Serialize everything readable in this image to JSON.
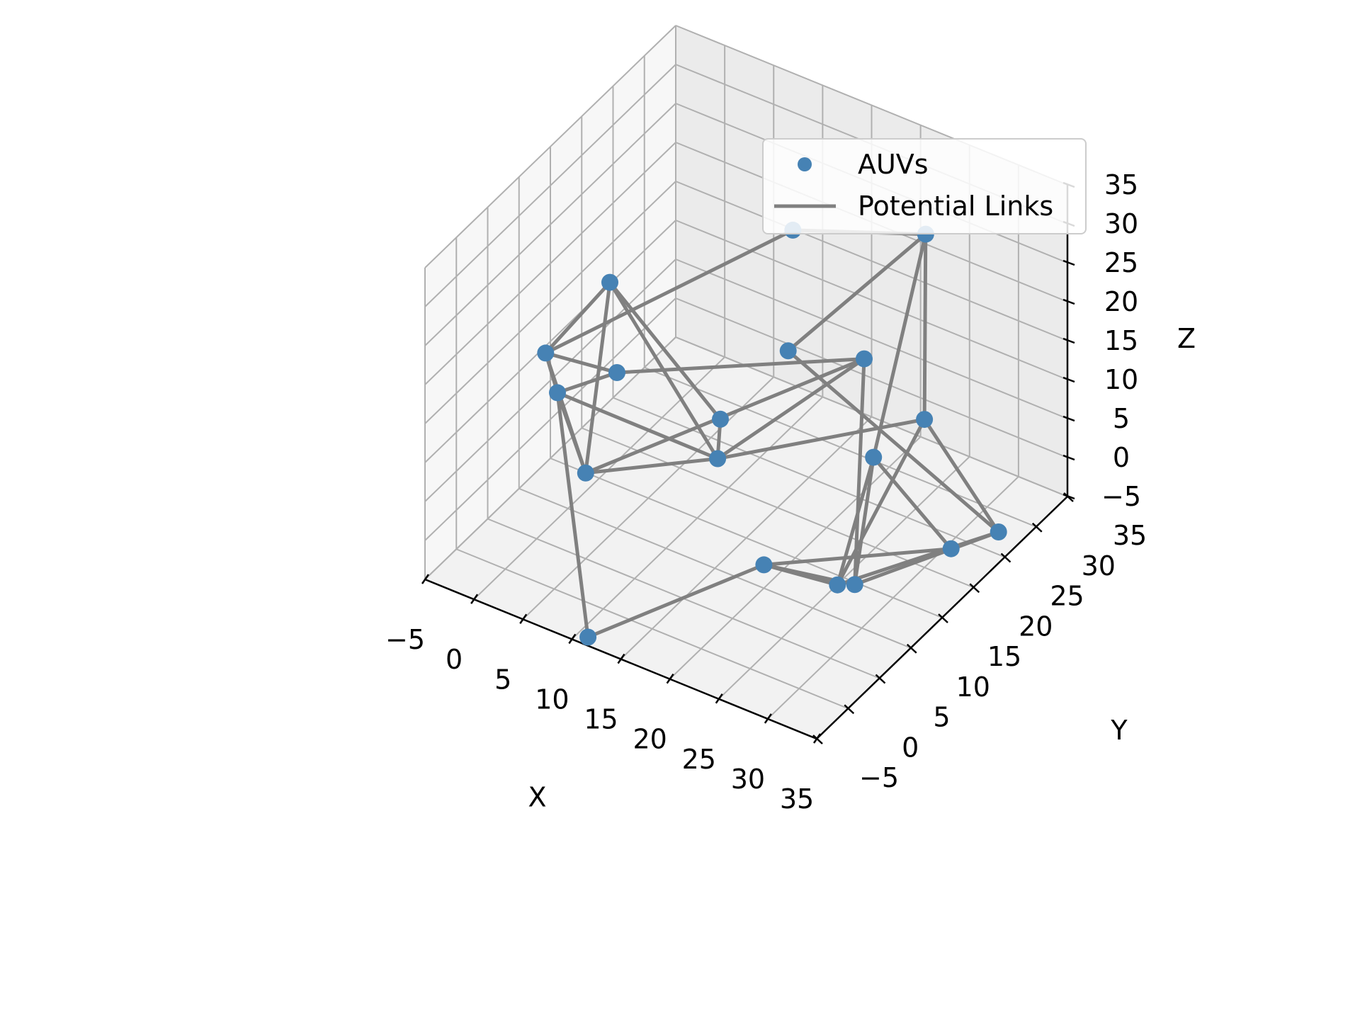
{
  "chart_data": {
    "type": "scatter",
    "projection": "3d",
    "xlabel": "X",
    "ylabel": "Y",
    "zlabel": "Z",
    "xlim": [
      -5,
      35
    ],
    "ylim": [
      -5,
      35
    ],
    "zlim": [
      -5,
      35
    ],
    "x_ticks": [
      "−5",
      "0",
      "5",
      "10",
      "15",
      "20",
      "25",
      "30",
      "35"
    ],
    "y_ticks": [
      "−5",
      "0",
      "5",
      "10",
      "15",
      "20",
      "25",
      "30",
      "35"
    ],
    "z_ticks": [
      "−5",
      "0",
      "5",
      "10",
      "15",
      "20",
      "25",
      "30",
      "35"
    ],
    "grid": true,
    "legend_position": "upper-right",
    "legend": [
      "AUVs",
      "Potential Links"
    ],
    "colors": {
      "points": "#4682b4",
      "links": "#808080"
    },
    "series": [
      {
        "name": "AUVs",
        "points": [
          [
            3,
            12,
            24
          ],
          [
            -1,
            8,
            16
          ],
          [
            5,
            10,
            15
          ],
          [
            -3,
            13,
            6
          ],
          [
            5,
            5,
            6
          ],
          [
            13,
            14,
            10
          ],
          [
            14,
            12,
            7
          ],
          [
            14,
            24,
            27
          ],
          [
            20,
            26,
            12
          ],
          [
            18,
            17,
            19
          ],
          [
            25,
            28,
            29
          ],
          [
            30,
            20,
            14
          ],
          [
            28,
            15,
            12
          ],
          [
            11,
            -4,
            -5
          ],
          [
            32,
            3,
            7
          ],
          [
            28,
            12,
            -2
          ],
          [
            34,
            18,
            1
          ],
          [
            35,
            24,
            -1
          ],
          [
            20,
            10,
            -2
          ]
        ]
      },
      {
        "name": "Potential Links",
        "edges": [
          [
            7,
            1
          ],
          [
            7,
            10
          ],
          [
            1,
            2
          ],
          [
            1,
            0
          ],
          [
            1,
            3
          ],
          [
            1,
            4
          ],
          [
            2,
            3
          ],
          [
            2,
            8
          ],
          [
            0,
            5
          ],
          [
            3,
            4
          ],
          [
            3,
            6
          ],
          [
            3,
            13
          ],
          [
            0,
            4
          ],
          [
            0,
            6
          ],
          [
            5,
            6
          ],
          [
            4,
            6
          ],
          [
            4,
            8
          ],
          [
            6,
            8
          ],
          [
            6,
            11
          ],
          [
            10,
            9
          ],
          [
            10,
            11
          ],
          [
            10,
            12
          ],
          [
            9,
            17
          ],
          [
            8,
            15
          ],
          [
            11,
            17
          ],
          [
            11,
            14
          ],
          [
            12,
            15
          ],
          [
            12,
            16
          ],
          [
            12,
            14
          ],
          [
            17,
            14
          ],
          [
            17,
            15
          ],
          [
            16,
            18
          ],
          [
            14,
            18
          ],
          [
            15,
            18
          ],
          [
            13,
            18
          ]
        ]
      }
    ]
  }
}
